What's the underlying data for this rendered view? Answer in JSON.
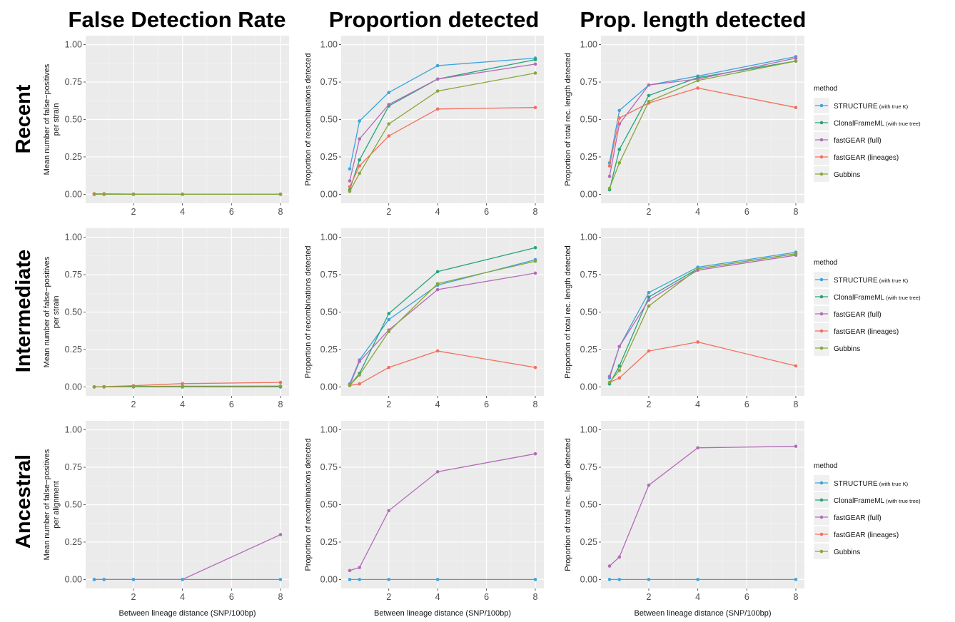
{
  "column_titles": [
    "False Detection Rate",
    "Proportion detected",
    "Prop. length detected"
  ],
  "row_titles": [
    "Recent",
    "Intermediate",
    "Ancestral"
  ],
  "legend": {
    "title": "method",
    "entries": [
      {
        "name": "STRUCTURE",
        "note": "(with true K)",
        "color": "#3ea3de"
      },
      {
        "name": "ClonalFrameML",
        "note": "(with true tree)",
        "color": "#26a37a"
      },
      {
        "name": "fastGEAR (full)",
        "note": "",
        "color": "#b36bb8"
      },
      {
        "name": "fastGEAR (lineages)",
        "note": "",
        "color": "#f2705e"
      },
      {
        "name": "Gubbins",
        "note": "",
        "color": "#88a63a"
      }
    ]
  },
  "chart_data": [
    {
      "type": "line",
      "row": "Recent",
      "column": "False Detection Rate",
      "ylabel": "Mean number of false−positives per strain",
      "xlabel": "",
      "x": [
        0.4,
        0.8,
        2,
        4,
        8
      ],
      "xticks": [
        2,
        4,
        6,
        8
      ],
      "ylim": [
        0,
        1
      ],
      "yticks": [
        "0.00",
        "0.25",
        "0.50",
        "0.75",
        "1.00"
      ],
      "series": [
        {
          "name": "STRUCTURE",
          "values": [
            0,
            0,
            0,
            0,
            0
          ]
        },
        {
          "name": "ClonalFrameML",
          "values": [
            0,
            0,
            0,
            0,
            0
          ]
        },
        {
          "name": "fastGEAR (full)",
          "values": [
            0.002,
            0.002,
            0.001,
            0.001,
            0.001
          ]
        },
        {
          "name": "fastGEAR (lineages)",
          "values": [
            0.004,
            0.004,
            0.002,
            0.001,
            0.001
          ]
        },
        {
          "name": "Gubbins",
          "values": [
            0,
            0,
            0,
            0,
            0
          ]
        }
      ]
    },
    {
      "type": "line",
      "row": "Recent",
      "column": "Proportion detected",
      "ylabel": "Proportion of recombinations detected",
      "xlabel": "",
      "x": [
        0.4,
        0.8,
        2,
        4,
        8
      ],
      "xticks": [
        2,
        4,
        6,
        8
      ],
      "ylim": [
        0,
        1
      ],
      "yticks": [
        "0.00",
        "0.25",
        "0.50",
        "0.75",
        "1.00"
      ],
      "series": [
        {
          "name": "STRUCTURE",
          "values": [
            0.17,
            0.49,
            0.68,
            0.86,
            0.91
          ]
        },
        {
          "name": "ClonalFrameML",
          "values": [
            0.03,
            0.23,
            0.59,
            0.77,
            0.9
          ]
        },
        {
          "name": "fastGEAR (full)",
          "values": [
            0.09,
            0.37,
            0.6,
            0.77,
            0.87
          ]
        },
        {
          "name": "fastGEAR (lineages)",
          "values": [
            0.05,
            0.19,
            0.39,
            0.57,
            0.58
          ]
        },
        {
          "name": "Gubbins",
          "values": [
            0.02,
            0.14,
            0.47,
            0.69,
            0.81
          ]
        }
      ]
    },
    {
      "type": "line",
      "row": "Recent",
      "column": "Prop. length detected",
      "ylabel": "Proportion of total rec. length detected",
      "xlabel": "",
      "x": [
        0.4,
        0.8,
        2,
        4,
        8
      ],
      "xticks": [
        2,
        4,
        6,
        8
      ],
      "ylim": [
        0,
        1
      ],
      "yticks": [
        "0.00",
        "0.25",
        "0.50",
        "0.75",
        "1.00"
      ],
      "series": [
        {
          "name": "STRUCTURE",
          "values": [
            0.21,
            0.56,
            0.73,
            0.79,
            0.92
          ]
        },
        {
          "name": "ClonalFrameML",
          "values": [
            0.03,
            0.3,
            0.66,
            0.78,
            0.89
          ]
        },
        {
          "name": "fastGEAR (full)",
          "values": [
            0.12,
            0.47,
            0.73,
            0.77,
            0.91
          ]
        },
        {
          "name": "fastGEAR (lineages)",
          "values": [
            0.19,
            0.51,
            0.61,
            0.71,
            0.58
          ]
        },
        {
          "name": "Gubbins",
          "values": [
            0.04,
            0.21,
            0.62,
            0.76,
            0.89
          ]
        }
      ]
    },
    {
      "type": "line",
      "row": "Intermediate",
      "column": "False Detection Rate",
      "ylabel": "Mean number of false−positives per strain",
      "xlabel": "",
      "x": [
        0.4,
        0.8,
        2,
        4,
        8
      ],
      "xticks": [
        2,
        4,
        6,
        8
      ],
      "ylim": [
        0,
        1
      ],
      "yticks": [
        "0.00",
        "0.25",
        "0.50",
        "0.75",
        "1.00"
      ],
      "series": [
        {
          "name": "STRUCTURE",
          "values": [
            0,
            0,
            0,
            0,
            0
          ]
        },
        {
          "name": "ClonalFrameML",
          "values": [
            0,
            0,
            0,
            0,
            0
          ]
        },
        {
          "name": "fastGEAR (full)",
          "values": [
            0,
            0.001,
            0.002,
            0.003,
            0.004
          ]
        },
        {
          "name": "fastGEAR (lineages)",
          "values": [
            0,
            0.002,
            0.008,
            0.022,
            0.03
          ]
        },
        {
          "name": "Gubbins",
          "values": [
            0,
            0.001,
            0.003,
            0.005,
            0.006
          ]
        }
      ]
    },
    {
      "type": "line",
      "row": "Intermediate",
      "column": "Proportion detected",
      "ylabel": "Proportion of recombinations detected",
      "xlabel": "",
      "x": [
        0.4,
        0.8,
        2,
        4,
        8
      ],
      "xticks": [
        2,
        4,
        6,
        8
      ],
      "ylim": [
        0,
        1
      ],
      "yticks": [
        "0.00",
        "0.25",
        "0.50",
        "0.75",
        "1.00"
      ],
      "series": [
        {
          "name": "STRUCTURE",
          "values": [
            0.02,
            0.18,
            0.45,
            0.68,
            0.85
          ]
        },
        {
          "name": "ClonalFrameML",
          "values": [
            0.01,
            0.09,
            0.49,
            0.77,
            0.93
          ]
        },
        {
          "name": "fastGEAR (full)",
          "values": [
            0.01,
            0.17,
            0.38,
            0.65,
            0.76
          ]
        },
        {
          "name": "fastGEAR (lineages)",
          "values": [
            0.01,
            0.02,
            0.13,
            0.24,
            0.13
          ]
        },
        {
          "name": "Gubbins",
          "values": [
            0.01,
            0.08,
            0.37,
            0.69,
            0.84
          ]
        }
      ]
    },
    {
      "type": "line",
      "row": "Intermediate",
      "column": "Prop. length detected",
      "ylabel": "Proportion of total rec. length detected",
      "xlabel": "",
      "x": [
        0.4,
        0.8,
        2,
        4,
        8
      ],
      "xticks": [
        2,
        4,
        6,
        8
      ],
      "ylim": [
        0,
        1
      ],
      "yticks": [
        "0.00",
        "0.25",
        "0.50",
        "0.75",
        "1.00"
      ],
      "series": [
        {
          "name": "STRUCTURE",
          "values": [
            0.06,
            0.27,
            0.63,
            0.8,
            0.9
          ]
        },
        {
          "name": "ClonalFrameML",
          "values": [
            0.02,
            0.14,
            0.6,
            0.79,
            0.89
          ]
        },
        {
          "name": "fastGEAR (full)",
          "values": [
            0.07,
            0.27,
            0.58,
            0.78,
            0.88
          ]
        },
        {
          "name": "fastGEAR (lineages)",
          "values": [
            0.03,
            0.06,
            0.24,
            0.3,
            0.14
          ]
        },
        {
          "name": "Gubbins",
          "values": [
            0.03,
            0.11,
            0.54,
            0.79,
            0.89
          ]
        }
      ]
    },
    {
      "type": "line",
      "row": "Ancestral",
      "column": "False Detection Rate",
      "ylabel": "Mean number of false−positives per alignment",
      "xlabel": "Between lineage distance (SNP/100bp)",
      "x": [
        0.4,
        0.8,
        2,
        4,
        8
      ],
      "xticks": [
        2,
        4,
        6,
        8
      ],
      "ylim": [
        0,
        1
      ],
      "yticks": [
        "0.00",
        "0.25",
        "0.50",
        "0.75",
        "1.00"
      ],
      "series": [
        {
          "name": "fastGEAR (full)",
          "values": [
            0,
            0,
            0,
            0,
            0.3
          ]
        },
        {
          "name": "STRUCTURE",
          "values": [
            0,
            0,
            0,
            0,
            0
          ]
        }
      ]
    },
    {
      "type": "line",
      "row": "Ancestral",
      "column": "Proportion detected",
      "ylabel": "Proportion of recombinations detected",
      "xlabel": "Between lineage distance (SNP/100bp)",
      "x": [
        0.4,
        0.8,
        2,
        4,
        8
      ],
      "xticks": [
        2,
        4,
        6,
        8
      ],
      "ylim": [
        0,
        1
      ],
      "yticks": [
        "0.00",
        "0.25",
        "0.50",
        "0.75",
        "1.00"
      ],
      "series": [
        {
          "name": "fastGEAR (full)",
          "values": [
            0.06,
            0.08,
            0.46,
            0.72,
            0.84
          ]
        },
        {
          "name": "STRUCTURE",
          "values": [
            0,
            0,
            0,
            0,
            0
          ]
        }
      ]
    },
    {
      "type": "line",
      "row": "Ancestral",
      "column": "Prop. length detected",
      "ylabel": "Proportion of total rec. length detected",
      "xlabel": "Between lineage distance (SNP/100bp)",
      "x": [
        0.4,
        0.8,
        2,
        4,
        8
      ],
      "xticks": [
        2,
        4,
        6,
        8
      ],
      "ylim": [
        0,
        1
      ],
      "yticks": [
        "0.00",
        "0.25",
        "0.50",
        "0.75",
        "1.00"
      ],
      "series": [
        {
          "name": "fastGEAR (full)",
          "values": [
            0.09,
            0.15,
            0.63,
            0.88,
            0.89
          ]
        },
        {
          "name": "STRUCTURE",
          "values": [
            0,
            0,
            0,
            0,
            0
          ]
        }
      ]
    }
  ]
}
